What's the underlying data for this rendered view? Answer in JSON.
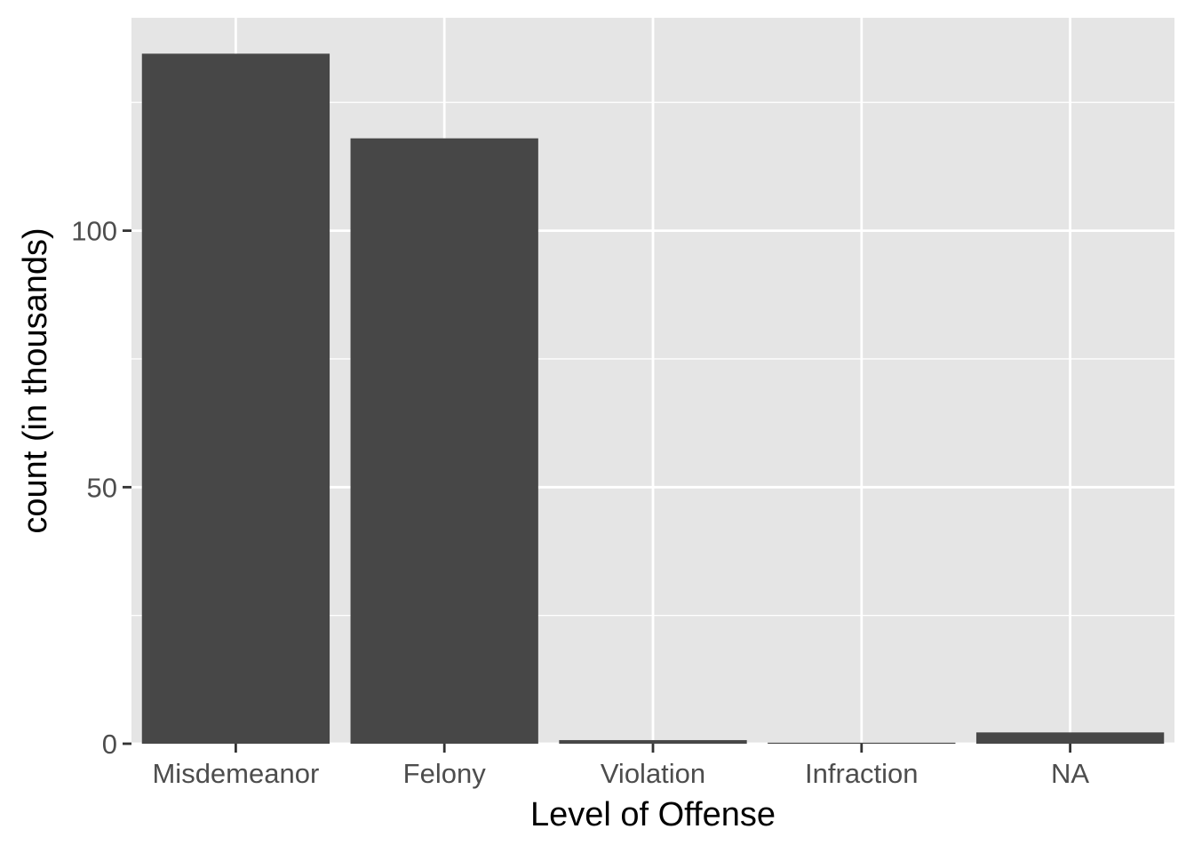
{
  "chart_data": {
    "type": "bar",
    "title": "",
    "xlabel": "Level of Offense",
    "ylabel": "count (in thousands)",
    "categories": [
      "Misdemeanor",
      "Felony",
      "Violation",
      "Infraction",
      "NA"
    ],
    "values": [
      134.5,
      118,
      0.7,
      0.2,
      2.2
    ],
    "ylim": [
      0,
      141.5
    ],
    "y_major_ticks": [
      0,
      50,
      100
    ],
    "y_minor_ticks": [
      25,
      75,
      125
    ],
    "y_tick_labels": [
      "0",
      "50",
      "100"
    ],
    "grid": true,
    "legend": "none",
    "colors": {
      "panel_background": "#e5e5e5",
      "grid_line": "#ffffff",
      "bar_fill": "#474747",
      "tick_mark": "#333333",
      "tick_label": "#4d4d4d",
      "axis_title": "#000000"
    }
  }
}
